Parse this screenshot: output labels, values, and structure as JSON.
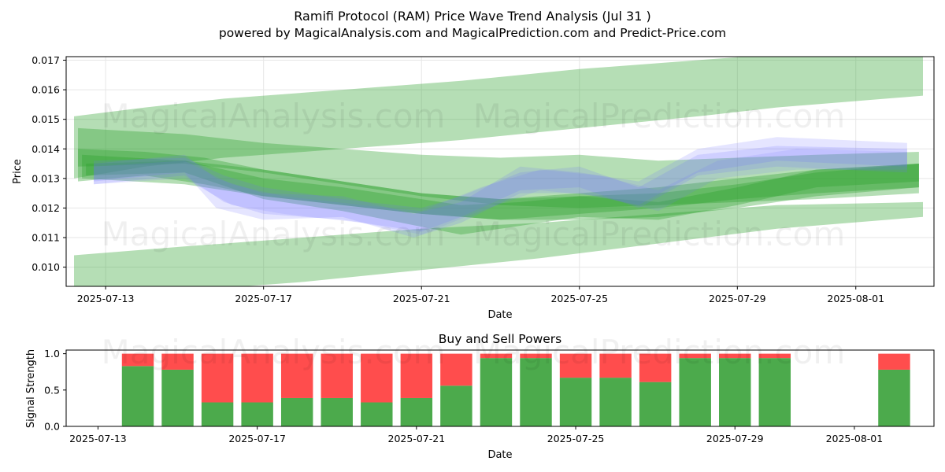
{
  "header": {
    "title": "Ramifi Protocol (RAM) Price Wave Trend Analysis (Jul 31 )",
    "subtitle": "powered by MagicalAnalysis.com and MagicalPrediction.com and Predict-Price.com"
  },
  "watermarks": [
    "MagicalAnalysis.com",
    "MagicalPrediction.com"
  ],
  "colors": {
    "green_band": "#2ca02c",
    "blue_band": "#6f6fff",
    "buy": "#4caa4c",
    "sell": "#ff4d4d",
    "grid": "#e6e6e6"
  },
  "chart_data": [
    {
      "type": "area",
      "title": "",
      "xlabel": "Date",
      "ylabel": "Price",
      "x_tick_labels": [
        "2025-07-13",
        "2025-07-17",
        "2025-07-21",
        "2025-07-25",
        "2025-07-29",
        "2025-08-01"
      ],
      "x_tick_days": [
        0,
        4,
        8,
        12,
        16,
        19
      ],
      "xlim_days": [
        -1.0,
        20.98
      ],
      "y_tick_labels": [
        "0.010",
        "0.011",
        "0.012",
        "0.013",
        "0.014",
        "0.015",
        "0.016",
        "0.017"
      ],
      "ylim": [
        0.00935,
        0.01712
      ],
      "grid": true,
      "series": [
        {
          "name": "wide-upper-band",
          "color": "green",
          "opacity": 0.35,
          "x": [
            -0.8,
            1,
            3,
            6,
            9,
            12,
            15,
            17,
            20.7
          ],
          "upper": [
            0.0151,
            0.0154,
            0.0157,
            0.016,
            0.0163,
            0.0167,
            0.017,
            0.0172,
            0.0174
          ],
          "lower": [
            0.013,
            0.0134,
            0.0137,
            0.014,
            0.0143,
            0.0147,
            0.0151,
            0.0154,
            0.0158
          ]
        },
        {
          "name": "wide-lower-band",
          "color": "green",
          "opacity": 0.35,
          "x": [
            -0.8,
            2,
            5,
            8,
            11,
            14,
            17,
            20.7
          ],
          "upper": [
            0.0104,
            0.0107,
            0.011,
            0.0113,
            0.0115,
            0.0118,
            0.0121,
            0.0122
          ],
          "lower": [
            0.0091,
            0.0092,
            0.0095,
            0.0099,
            0.0103,
            0.0108,
            0.0113,
            0.0117
          ]
        },
        {
          "name": "mid-band-1",
          "color": "green",
          "opacity": 0.35,
          "x": [
            -0.7,
            2,
            4,
            6,
            8,
            10,
            12,
            14,
            16,
            18,
            20.6
          ],
          "upper": [
            0.0147,
            0.0145,
            0.0142,
            0.014,
            0.0138,
            0.0137,
            0.0138,
            0.0136,
            0.0137,
            0.0138,
            0.0139
          ],
          "lower": [
            0.0134,
            0.0135,
            0.0132,
            0.0128,
            0.0124,
            0.0121,
            0.012,
            0.0121,
            0.0122,
            0.0123,
            0.0125
          ]
        },
        {
          "name": "mid-band-2",
          "color": "green",
          "opacity": 0.35,
          "x": [
            -0.6,
            2,
            4,
            6,
            8,
            10,
            12,
            14,
            16,
            18,
            20.6
          ],
          "upper": [
            0.0138,
            0.0136,
            0.0133,
            0.0129,
            0.0125,
            0.0123,
            0.0124,
            0.0125,
            0.0128,
            0.0132,
            0.0135
          ],
          "lower": [
            0.013,
            0.0128,
            0.0124,
            0.0121,
            0.0118,
            0.0116,
            0.0116,
            0.0117,
            0.012,
            0.0124,
            0.0127
          ]
        },
        {
          "name": "mid-band-3",
          "color": "green",
          "opacity": 0.35,
          "x": [
            -0.5,
            2,
            4,
            6,
            7.5,
            9,
            10.5,
            12,
            14,
            16,
            18,
            20.6
          ],
          "upper": [
            0.0135,
            0.0136,
            0.013,
            0.0127,
            0.0124,
            0.0121,
            0.0122,
            0.0124,
            0.0122,
            0.0127,
            0.0133,
            0.0135
          ],
          "lower": [
            0.0131,
            0.0132,
            0.0123,
            0.0119,
            0.0115,
            0.0111,
            0.0114,
            0.0117,
            0.0116,
            0.0121,
            0.0127,
            0.0129
          ]
        },
        {
          "name": "mid-band-4",
          "color": "green",
          "opacity": 0.35,
          "x": [
            -0.7,
            1,
            2.5,
            4,
            6,
            8,
            10,
            12,
            14,
            16,
            18,
            20.6
          ],
          "upper": [
            0.014,
            0.0139,
            0.0137,
            0.0133,
            0.0129,
            0.0125,
            0.0123,
            0.0125,
            0.0127,
            0.013,
            0.0133,
            0.0135
          ],
          "lower": [
            0.0129,
            0.0131,
            0.0128,
            0.0124,
            0.0121,
            0.0118,
            0.0116,
            0.0118,
            0.012,
            0.0123,
            0.0125,
            0.0127
          ]
        },
        {
          "name": "wave-blue-1",
          "color": "blue",
          "opacity": 0.18,
          "x": [
            -0.3,
            2,
            2.8,
            4,
            6,
            7.8,
            9,
            10.5,
            12,
            13.5,
            15,
            17,
            20.3
          ],
          "upper": [
            0.0135,
            0.0138,
            0.013,
            0.0125,
            0.0124,
            0.0118,
            0.0122,
            0.0134,
            0.0132,
            0.0129,
            0.014,
            0.0144,
            0.0142
          ],
          "lower": [
            0.0129,
            0.0132,
            0.012,
            0.0116,
            0.0117,
            0.011,
            0.0115,
            0.0125,
            0.0125,
            0.0121,
            0.0132,
            0.0136,
            0.0134
          ]
        },
        {
          "name": "wave-blue-2",
          "color": "blue",
          "opacity": 0.18,
          "x": [
            -0.3,
            2,
            3,
            4,
            6,
            8,
            9,
            10.5,
            12,
            13.5,
            15,
            17,
            20.3
          ],
          "upper": [
            0.0136,
            0.0137,
            0.0131,
            0.0127,
            0.0123,
            0.012,
            0.0124,
            0.0132,
            0.0134,
            0.0127,
            0.0138,
            0.0141,
            0.014
          ],
          "lower": [
            0.0128,
            0.0131,
            0.0122,
            0.0118,
            0.0116,
            0.0112,
            0.0117,
            0.0126,
            0.0127,
            0.012,
            0.0131,
            0.0134,
            0.0132
          ]
        },
        {
          "name": "wave-blue-3",
          "color": "blue",
          "opacity": 0.15,
          "x": [
            -0.3,
            2,
            3.2,
            4.5,
            6.5,
            8,
            9.5,
            11,
            12.5,
            14,
            15.5,
            17.5,
            20.3
          ],
          "upper": [
            0.0134,
            0.0136,
            0.0128,
            0.0124,
            0.0121,
            0.0119,
            0.0127,
            0.0133,
            0.0131,
            0.0126,
            0.0136,
            0.014,
            0.0139
          ],
          "lower": [
            0.0128,
            0.013,
            0.0121,
            0.0118,
            0.0115,
            0.0111,
            0.0119,
            0.0126,
            0.0124,
            0.0119,
            0.013,
            0.0133,
            0.0133
          ]
        }
      ]
    },
    {
      "type": "bar",
      "title": "Buy and Sell Powers",
      "xlabel": "Date",
      "ylabel": "Signal Strength",
      "x_tick_labels": [
        "2025-07-13",
        "2025-07-17",
        "2025-07-21",
        "2025-07-25",
        "2025-07-29",
        "2025-08-01"
      ],
      "x_tick_days": [
        0,
        4,
        8,
        12,
        16,
        19
      ],
      "xlim_days": [
        -0.8,
        21.0
      ],
      "y_tick_labels": [
        "0.0",
        "0.5",
        "1.0"
      ],
      "ylim": [
        0,
        1.05
      ],
      "bar_days": [
        1,
        2,
        3,
        4,
        5,
        6,
        7,
        8,
        9,
        10,
        11,
        12,
        13,
        14,
        15,
        16,
        17,
        20
      ],
      "series": [
        {
          "name": "Buy",
          "values": [
            0.83,
            0.78,
            0.33,
            0.33,
            0.39,
            0.39,
            0.33,
            0.39,
            0.56,
            0.94,
            0.94,
            0.67,
            0.67,
            0.61,
            0.94,
            0.94,
            0.94,
            0.78
          ]
        },
        {
          "name": "Sell",
          "values": [
            0.17,
            0.22,
            0.67,
            0.67,
            0.61,
            0.61,
            0.67,
            0.61,
            0.44,
            0.06,
            0.06,
            0.33,
            0.33,
            0.39,
            0.06,
            0.06,
            0.06,
            0.22
          ]
        }
      ]
    }
  ]
}
